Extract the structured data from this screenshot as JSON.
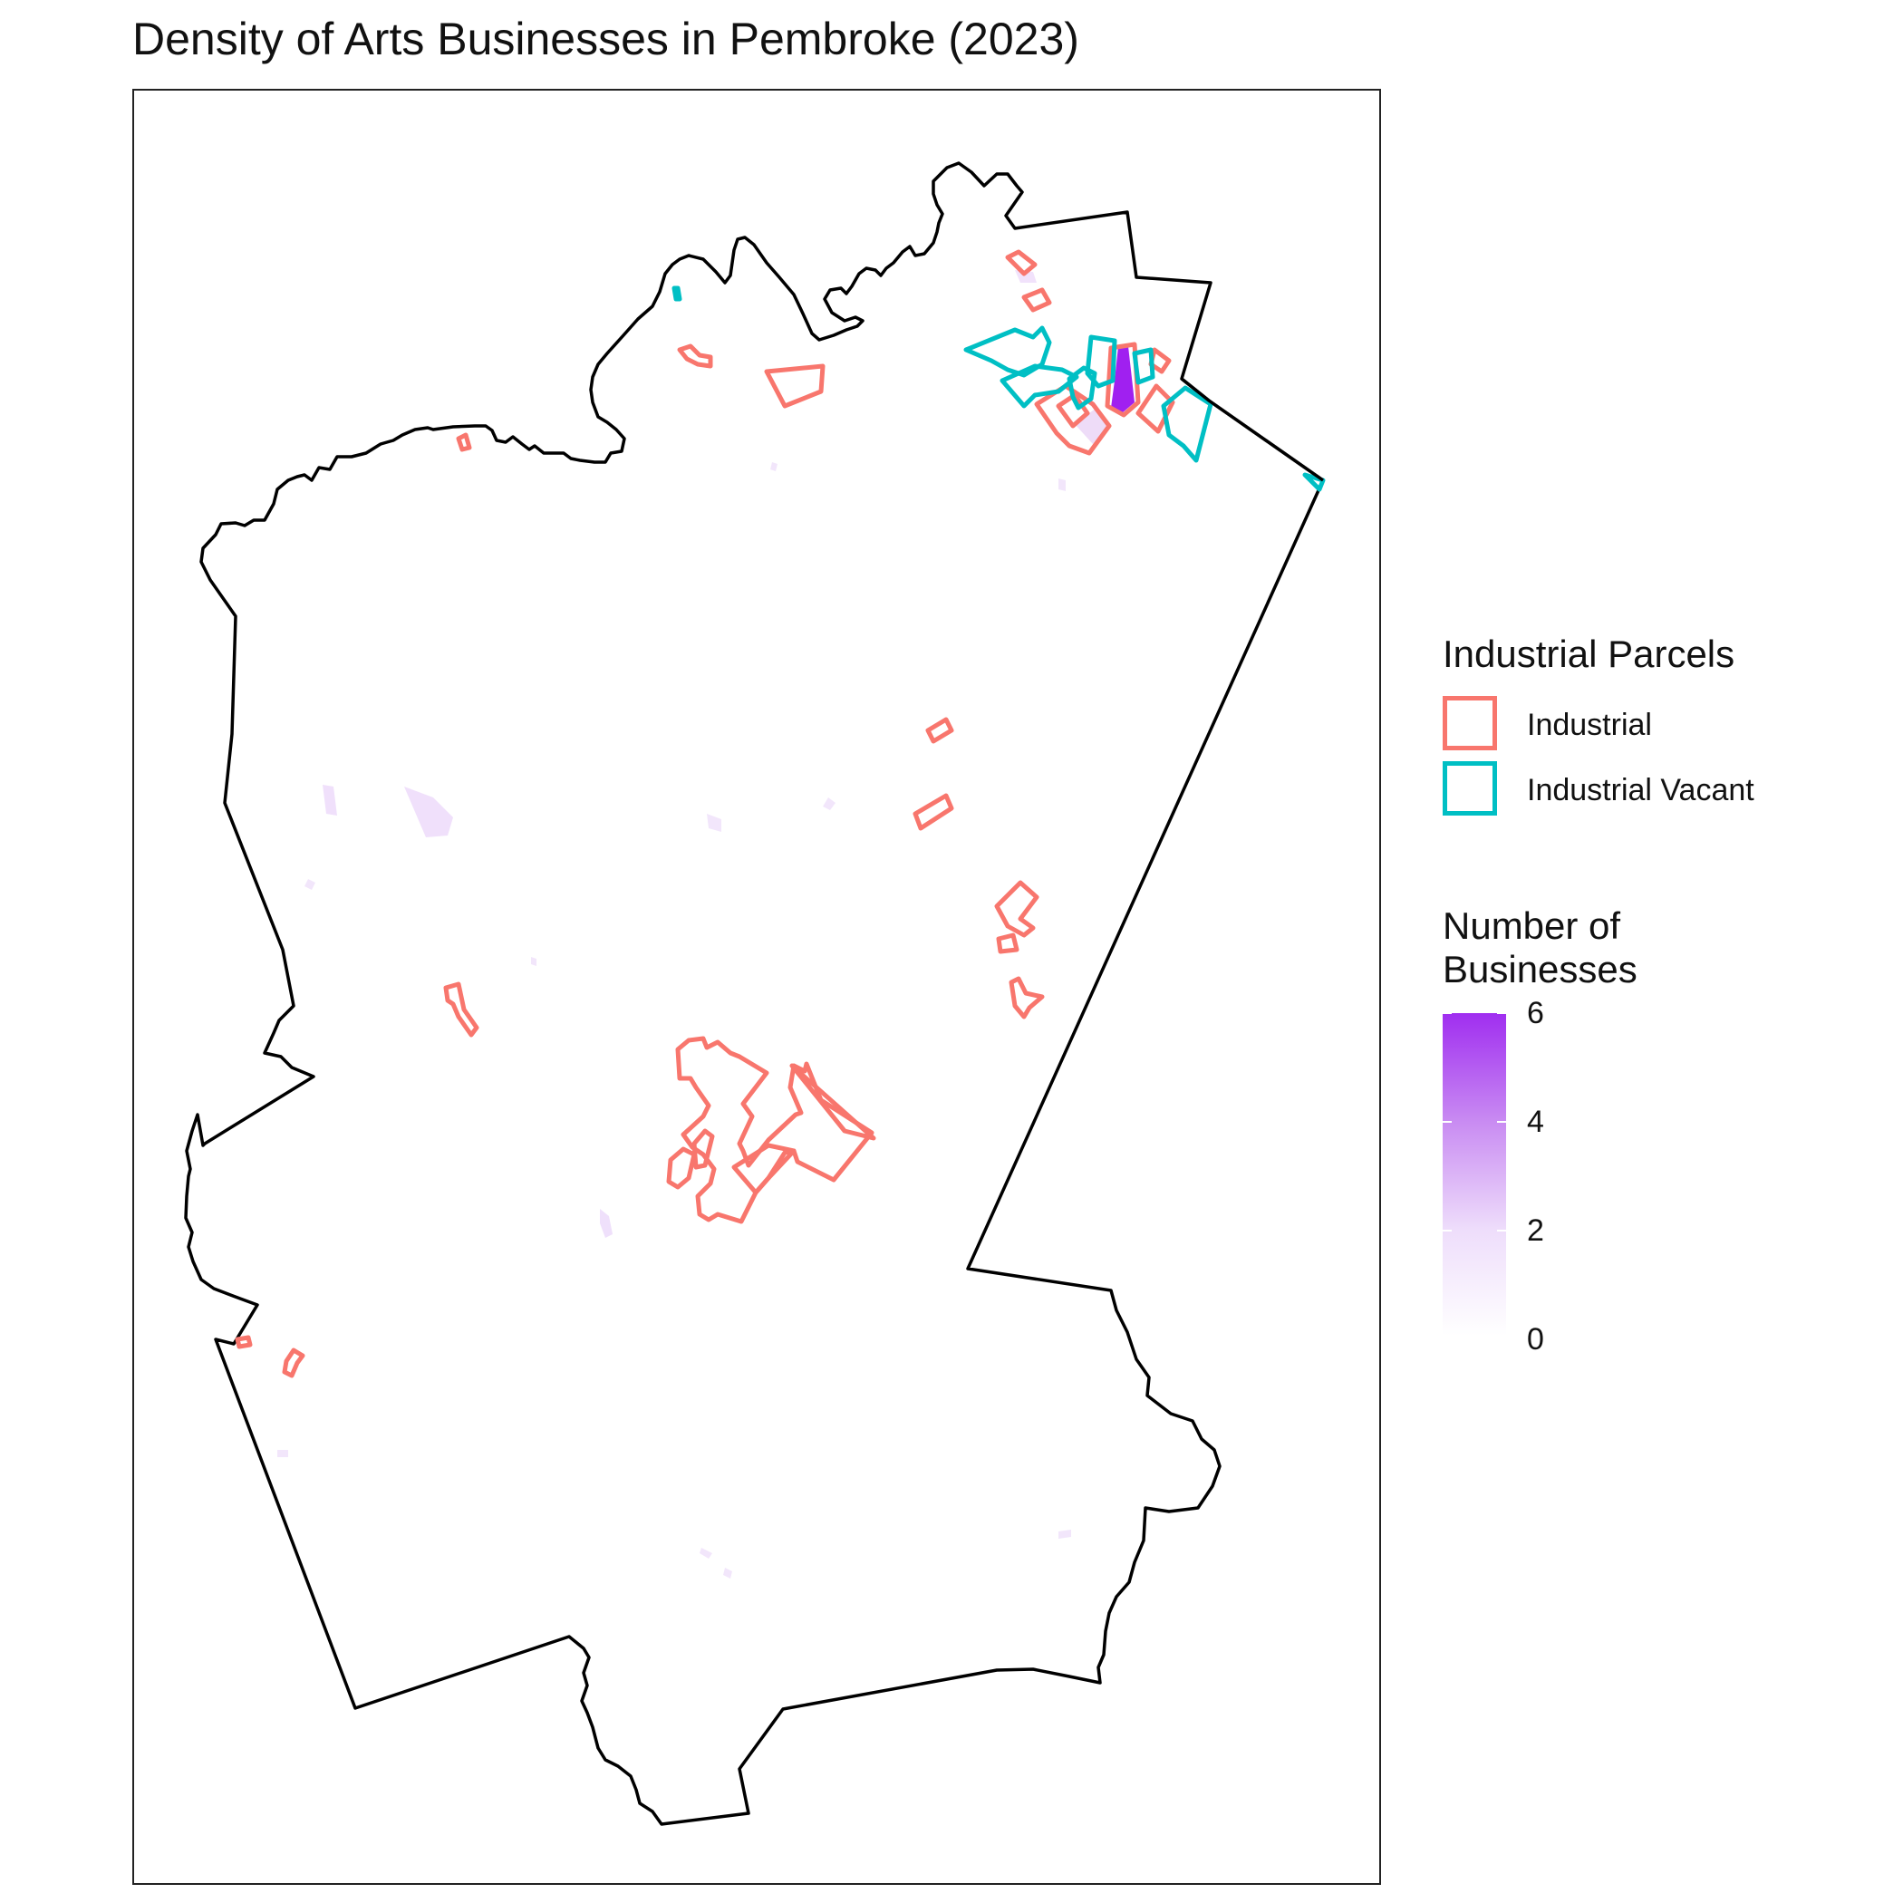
{
  "title": "Density of Arts Businesses in Pembroke (2023)",
  "colors": {
    "industrial": "#F8766D",
    "industrial_vacant": "#00BFC4",
    "density_low": "#ffffff",
    "density_high": "#A020F0",
    "boundary": "#000000"
  },
  "legend": {
    "parcels_title": "Industrial Parcels",
    "parcel_types": [
      {
        "label": "Industrial",
        "color": "#F8766D"
      },
      {
        "label": "Industrial Vacant",
        "color": "#00BFC4"
      }
    ],
    "density_title_line1": "Number of",
    "density_title_line2": "Businesses",
    "density_ticks": [
      "6",
      "4",
      "2",
      "0"
    ],
    "density_range": [
      0,
      6
    ]
  }
}
